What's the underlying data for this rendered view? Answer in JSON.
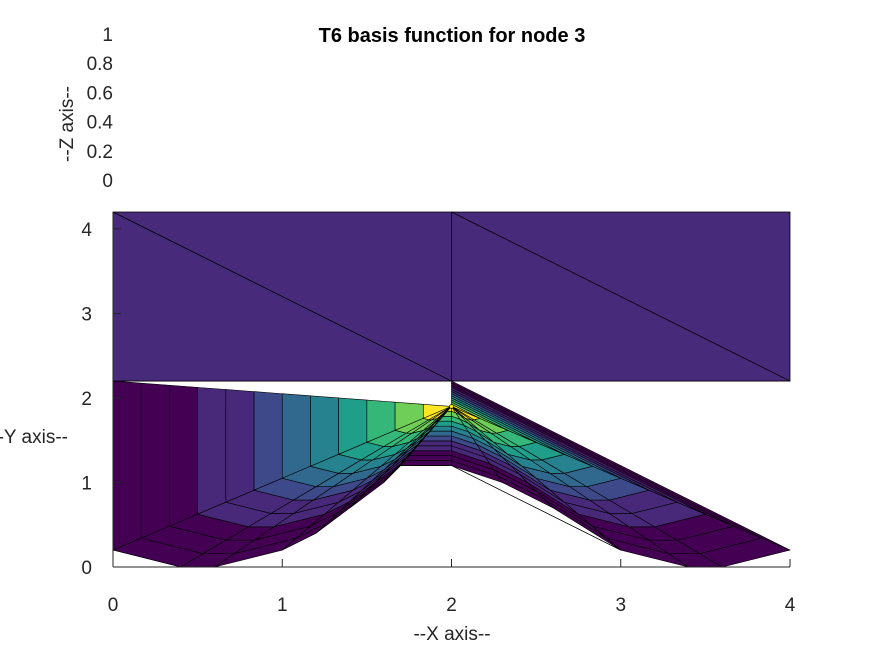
{
  "chart_data": {
    "type": "surface",
    "title": "T6 basis function for node 3",
    "xlabel": "--X axis--",
    "ylabel": "--Y axis--",
    "zlabel": "--Z axis--",
    "xlim": [
      0,
      4
    ],
    "ylim": [
      0,
      4.2
    ],
    "zlim": [
      0,
      1
    ],
    "x_ticks": [
      "0",
      "1",
      "2",
      "3",
      "4"
    ],
    "y_ticks": [
      "0",
      "1",
      "2",
      "3",
      "4"
    ],
    "z_ticks": [
      "0",
      "0.2",
      "0.4",
      "0.6",
      "0.8",
      "1"
    ],
    "colormap": [
      "#440154",
      "#482878",
      "#3e4989",
      "#31688e",
      "#26828e",
      "#1f9e89",
      "#35b779",
      "#6ece58",
      "#b5de2b",
      "#fde725"
    ],
    "node": {
      "x": 2.0,
      "y": 1.9,
      "value": 1.0
    },
    "triangles": [
      [
        [
          0,
          2.2
        ],
        [
          4,
          2.2
        ],
        [
          4,
          4.2
        ],
        [
          0,
          4.2
        ]
      ],
      [
        [
          0,
          4.2
        ],
        [
          2,
          2.2
        ]
      ],
      [
        [
          2,
          4.2
        ],
        [
          4,
          2.2
        ]
      ],
      [
        [
          2,
          4.2
        ],
        [
          2,
          2.2
        ]
      ]
    ],
    "lower_region": {
      "left_boundary": [
        [
          0,
          0.2
        ],
        [
          0.4,
          0.0
        ],
        [
          0.6,
          0.0
        ],
        [
          1.0,
          0.2
        ],
        [
          1.2,
          0.4
        ],
        [
          1.4,
          0.7
        ],
        [
          1.6,
          1.0
        ],
        [
          1.7,
          1.2
        ],
        [
          2.0,
          1.9
        ],
        [
          2.0,
          1.2
        ]
      ],
      "right_boundary": [
        [
          2.0,
          1.2
        ],
        [
          2.3,
          1.0
        ],
        [
          2.6,
          0.7
        ],
        [
          3.0,
          0.2
        ],
        [
          3.4,
          0.0
        ],
        [
          3.6,
          0.0
        ],
        [
          4.0,
          0.2
        ],
        [
          4.0,
          0.2
        ]
      ]
    }
  }
}
